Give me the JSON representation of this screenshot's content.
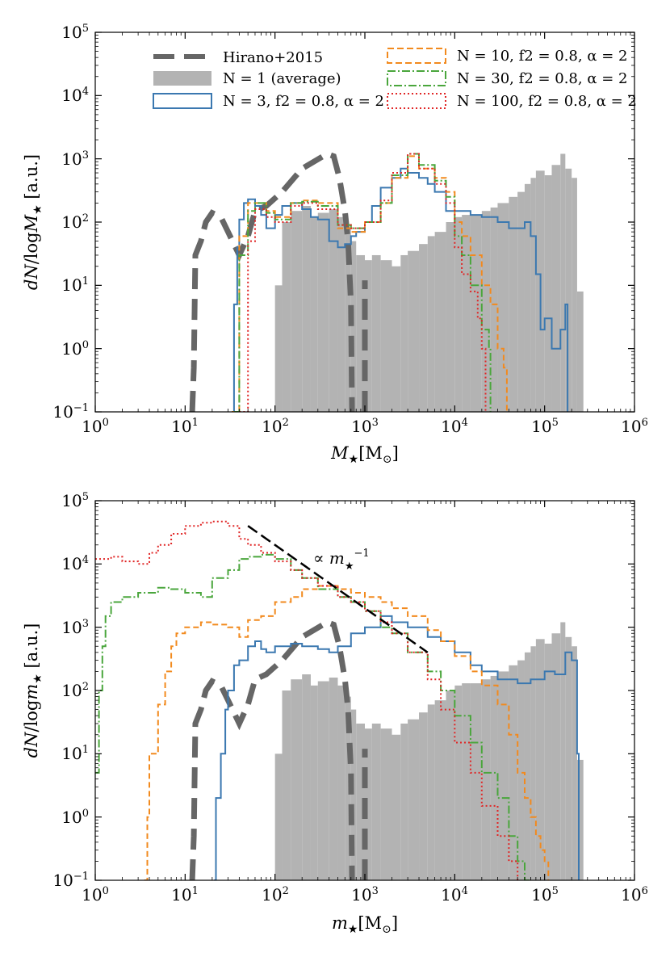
{
  "colors": {
    "hirano": "#666666",
    "n1": "#b3b3b3",
    "n3": "#3b78b0",
    "n10": "#f28a1e",
    "n30": "#4aa63c",
    "n100": "#e02525",
    "axis": "#000000"
  },
  "legend": {
    "hirano": "Hirano+2015",
    "n1": "N = 1 (average)",
    "n3": "N = 3, f2 = 0.8, α = 2",
    "n10": "N = 10, f2 = 0.8, α = 2",
    "n30": "N = 30, f2 = 0.8, α = 2",
    "n100": "N = 100, f2 = 0.8, α = 2"
  },
  "chart_data": [
    {
      "type": "histogram",
      "panel": "top",
      "xlabel": "M★[M☉]",
      "ylabel": "dN/logM★ [a.u.]",
      "xscale": "log",
      "yscale": "log",
      "xlim": [
        1,
        1000000
      ],
      "ylim": [
        0.1,
        100000
      ],
      "xtick_labels": [
        "10^0",
        "10^1",
        "10^2",
        "10^3",
        "10^4",
        "10^5",
        "10^6"
      ],
      "ytick_labels": [
        "10^-1",
        "10^0",
        "10^1",
        "10^2",
        "10^3",
        "10^4",
        "10^5"
      ],
      "legend_position": "upper",
      "series": [
        {
          "name": "Hirano+2015",
          "style": "dashed",
          "key": "hirano",
          "x": [
            12,
            12.5,
            13,
            15,
            17,
            20,
            25,
            30,
            40,
            50,
            60,
            80,
            120,
            200,
            380,
            450,
            520,
            600,
            650,
            700,
            720
          ],
          "y": [
            0.1,
            0.5,
            30,
            50,
            100,
            140,
            120,
            70,
            30,
            60,
            150,
            180,
            300,
            700,
            1200,
            1100,
            500,
            150,
            50,
            5,
            0.1
          ],
          "x2": [
            1000,
            1000
          ],
          "y2": [
            0.1,
            12
          ]
        },
        {
          "name": "N = 1 (average)",
          "style": "bars",
          "key": "n1",
          "x": [
            90,
            100,
            120,
            150,
            200,
            250,
            300,
            400,
            500,
            600,
            700,
            800,
            1000,
            1200,
            1500,
            2000,
            2500,
            3000,
            4000,
            5000,
            6000,
            8000,
            10000,
            12000,
            15000,
            20000,
            25000,
            30000,
            40000,
            50000,
            60000,
            70000,
            80000,
            100000,
            120000,
            150000,
            170000,
            200000,
            230000,
            270000
          ],
          "y": [
            0.1,
            10,
            100,
            150,
            180,
            120,
            140,
            160,
            120,
            80,
            50,
            30,
            25,
            30,
            25,
            20,
            30,
            35,
            45,
            60,
            70,
            100,
            120,
            130,
            130,
            150,
            170,
            200,
            250,
            300,
            400,
            500,
            650,
            550,
            800,
            1200,
            700,
            500,
            8,
            0.1
          ]
        },
        {
          "name": "N = 3, f2 = 0.8, α = 2",
          "style": "solid-step",
          "key": "n3",
          "x": [
            33,
            35,
            38,
            40,
            45,
            50,
            60,
            70,
            80,
            100,
            120,
            150,
            200,
            250,
            300,
            400,
            500,
            600,
            700,
            800,
            1000,
            1200,
            1500,
            2000,
            2500,
            3000,
            4000,
            5000,
            6000,
            8000,
            10000,
            15000,
            20000,
            30000,
            40000,
            50000,
            60000,
            70000,
            80000,
            90000,
            100000,
            120000,
            150000,
            170000,
            180000,
            180000
          ],
          "y": [
            0.1,
            5,
            40,
            110,
            200,
            230,
            180,
            130,
            80,
            130,
            180,
            200,
            160,
            120,
            110,
            50,
            40,
            45,
            60,
            70,
            100,
            180,
            350,
            500,
            700,
            600,
            500,
            400,
            300,
            150,
            150,
            130,
            120,
            100,
            80,
            80,
            100,
            60,
            15,
            2,
            3,
            1,
            2,
            5,
            5,
            0.1
          ]
        },
        {
          "name": "N = 10, f2 = 0.8, α = 2",
          "style": "dashed-step",
          "key": "n10",
          "x": [
            33,
            40,
            50,
            60,
            80,
            100,
            150,
            200,
            300,
            500,
            700,
            1000,
            1500,
            2000,
            3000,
            4000,
            6000,
            8000,
            10000,
            12000,
            15000,
            20000,
            25000,
            30000,
            35000,
            38000
          ],
          "y": [
            0.1,
            60,
            200,
            200,
            150,
            120,
            200,
            220,
            200,
            80,
            70,
            100,
            200,
            500,
            1100,
            700,
            500,
            300,
            100,
            60,
            30,
            10,
            5,
            1,
            0.5,
            0.1
          ]
        },
        {
          "name": "N = 30, f2 = 0.8, α = 2",
          "style": "dashdot-step",
          "key": "n30",
          "x": [
            35,
            40,
            50,
            60,
            80,
            100,
            150,
            200,
            300,
            500,
            700,
            1000,
            1500,
            2000,
            3000,
            4000,
            6000,
            8000,
            10000,
            12000,
            15000,
            20000,
            24000,
            25000
          ],
          "y": [
            0.1,
            30,
            150,
            200,
            140,
            110,
            200,
            210,
            180,
            90,
            80,
            100,
            200,
            550,
            1200,
            800,
            450,
            250,
            60,
            30,
            10,
            2,
            1,
            0.1
          ]
        },
        {
          "name": "N = 100, f2 = 0.8, α = 2",
          "style": "dotted-step",
          "key": "n100",
          "x": [
            40,
            50,
            60,
            80,
            100,
            150,
            200,
            300,
            500,
            700,
            1000,
            1500,
            2000,
            3000,
            4000,
            6000,
            8000,
            10000,
            12000,
            15000,
            18000,
            20000,
            22000
          ],
          "y": [
            0.1,
            50,
            160,
            120,
            100,
            180,
            200,
            160,
            90,
            80,
            100,
            220,
            600,
            1200,
            700,
            400,
            200,
            40,
            15,
            8,
            3,
            1,
            0.1
          ]
        }
      ]
    },
    {
      "type": "histogram",
      "panel": "bottom",
      "xlabel": "m★[M☉]",
      "ylabel": "dN/logm★ [a.u.]",
      "xscale": "log",
      "yscale": "log",
      "xlim": [
        1,
        1000000
      ],
      "ylim": [
        0.1,
        100000
      ],
      "xtick_labels": [
        "10^0",
        "10^1",
        "10^2",
        "10^3",
        "10^4",
        "10^5",
        "10^6"
      ],
      "ytick_labels": [
        "10^-1",
        "10^0",
        "10^1",
        "10^2",
        "10^3",
        "10^4",
        "10^5"
      ],
      "annotation": "∝ m★^-1",
      "reference_line": {
        "x": [
          50,
          5000
        ],
        "y": [
          40000,
          400
        ]
      },
      "series": [
        {
          "name": "Hirano+2015",
          "style": "dashed",
          "key": "hirano",
          "x": [
            12,
            12.5,
            13,
            15,
            17,
            20,
            25,
            30,
            40,
            50,
            60,
            80,
            120,
            200,
            380,
            450,
            520,
            600,
            650,
            700,
            720
          ],
          "y": [
            0.1,
            0.5,
            30,
            50,
            100,
            140,
            120,
            70,
            30,
            60,
            150,
            180,
            300,
            700,
            1200,
            1100,
            500,
            150,
            50,
            5,
            0.1
          ],
          "x2": [
            1000,
            1000
          ],
          "y2": [
            0.1,
            12
          ]
        },
        {
          "name": "N = 1 (average)",
          "style": "bars",
          "key": "n1",
          "x": [
            90,
            100,
            120,
            150,
            200,
            250,
            300,
            400,
            500,
            600,
            700,
            800,
            1000,
            1200,
            1500,
            2000,
            2500,
            3000,
            4000,
            5000,
            6000,
            8000,
            10000,
            12000,
            15000,
            20000,
            25000,
            30000,
            40000,
            50000,
            60000,
            70000,
            80000,
            100000,
            120000,
            150000,
            170000,
            200000,
            230000,
            270000
          ],
          "y": [
            0.1,
            10,
            100,
            150,
            180,
            120,
            140,
            160,
            120,
            80,
            50,
            30,
            25,
            30,
            25,
            20,
            30,
            35,
            45,
            60,
            70,
            100,
            120,
            130,
            130,
            150,
            170,
            200,
            250,
            300,
            400,
            500,
            650,
            550,
            800,
            1200,
            700,
            500,
            8,
            0.1
          ]
        },
        {
          "name": "N = 3",
          "style": "solid-step",
          "key": "n3",
          "x": [
            21,
            22,
            25,
            28,
            30,
            35,
            40,
            50,
            60,
            70,
            80,
            100,
            150,
            200,
            300,
            400,
            500,
            700,
            1000,
            1500,
            2000,
            3000,
            5000,
            7000,
            10000,
            15000,
            20000,
            30000,
            50000,
            70000,
            100000,
            130000,
            170000,
            200000,
            230000,
            240000
          ],
          "y": [
            0.1,
            2,
            10,
            50,
            100,
            250,
            300,
            500,
            600,
            450,
            400,
            500,
            550,
            500,
            450,
            400,
            500,
            800,
            1000,
            1500,
            1200,
            1000,
            700,
            600,
            400,
            250,
            200,
            150,
            130,
            150,
            200,
            180,
            400,
            300,
            10,
            0.1
          ]
        },
        {
          "name": "N = 10",
          "style": "dashed-step",
          "key": "n10",
          "x": [
            3.5,
            3.8,
            4,
            5,
            6,
            7,
            8,
            10,
            15,
            20,
            30,
            40,
            50,
            70,
            100,
            150,
            200,
            300,
            500,
            700,
            1000,
            1500,
            2000,
            3000,
            5000,
            7000,
            10000,
            15000,
            20000,
            30000,
            40000,
            50000,
            60000,
            70000,
            80000,
            90000,
            100000,
            110000
          ],
          "y": [
            0.1,
            1,
            10,
            60,
            200,
            500,
            800,
            1000,
            1200,
            1100,
            1000,
            700,
            1300,
            1500,
            2500,
            3000,
            4000,
            4500,
            4000,
            3500,
            3000,
            2500,
            2000,
            1500,
            900,
            600,
            350,
            200,
            120,
            60,
            20,
            5,
            2,
            1,
            0.5,
            0.3,
            0.2,
            0.1
          ]
        },
        {
          "name": "N = 30",
          "style": "dashdot-step",
          "key": "n30",
          "x": [
            1,
            1.1,
            1.2,
            1.3,
            1.5,
            2,
            3,
            5,
            7,
            10,
            15,
            20,
            30,
            40,
            50,
            70,
            100,
            150,
            200,
            300,
            500,
            700,
            1000,
            1500,
            2000,
            3000,
            5000,
            7000,
            10000,
            15000,
            20000,
            30000,
            40000,
            50000,
            60000,
            70000
          ],
          "y": [
            5,
            100,
            500,
            1500,
            2500,
            3000,
            3500,
            4200,
            4000,
            3500,
            3000,
            6000,
            8000,
            12000,
            13000,
            14000,
            12000,
            8000,
            6000,
            4000,
            3000,
            2500,
            1800,
            1000,
            800,
            400,
            200,
            100,
            40,
            15,
            5,
            2,
            0.5,
            0.2,
            0.1,
            0.1
          ]
        },
        {
          "name": "N = 100",
          "style": "dotted-step",
          "key": "n100",
          "x": [
            1,
            1.5,
            2,
            3,
            4,
            5,
            7,
            10,
            15,
            20,
            30,
            40,
            50,
            70,
            100,
            150,
            200,
            300,
            500,
            700,
            1000,
            1500,
            2000,
            3000,
            5000,
            7000,
            10000,
            15000,
            20000,
            30000,
            40000,
            50000
          ],
          "y": [
            12000,
            13000,
            11000,
            10000,
            15000,
            20000,
            30000,
            40000,
            45000,
            47000,
            40000,
            25000,
            20000,
            15000,
            11000,
            8000,
            6000,
            4500,
            3000,
            2500,
            1800,
            1200,
            800,
            400,
            150,
            50,
            15,
            5,
            1.5,
            0.5,
            0.2,
            0.1
          ]
        }
      ]
    }
  ]
}
